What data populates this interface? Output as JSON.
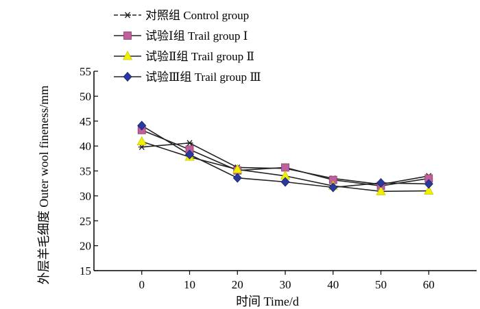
{
  "chart_data": {
    "type": "line",
    "title": "",
    "xlabel": "时间 Time/d",
    "ylabel": "外层羊毛细度 Outer wool fineness/mm",
    "x": [
      0,
      10,
      20,
      30,
      40,
      50,
      60
    ],
    "xlim": [
      -10,
      70
    ],
    "ylim": [
      15,
      55
    ],
    "yticks": [
      15,
      20,
      25,
      30,
      35,
      40,
      45,
      50,
      55
    ],
    "xticks": [
      0,
      10,
      20,
      30,
      40,
      50,
      60
    ],
    "grid": false,
    "legend_position": "top",
    "series": [
      {
        "name": "对照组 Control group",
        "marker": "asterisk",
        "color": "#222222",
        "values": [
          39.8,
          40.6,
          35.7,
          35.5,
          33.5,
          32.3,
          34.0
        ]
      },
      {
        "name": "试验Ⅰ组 Trail group Ⅰ",
        "marker": "square",
        "color": "#c0609a",
        "values": [
          43.2,
          39.3,
          35.1,
          35.7,
          33.2,
          32.0,
          33.5
        ]
      },
      {
        "name": "试验Ⅱ组 Trail group Ⅱ",
        "marker": "triangle",
        "color": "#f0f000",
        "values": [
          40.9,
          37.8,
          35.3,
          34.0,
          32.0,
          30.9,
          31.0
        ]
      },
      {
        "name": "试验Ⅲ组 Trail group Ⅲ",
        "marker": "diamond",
        "color": "#2a3a9a",
        "values": [
          44.1,
          38.3,
          33.6,
          32.8,
          31.7,
          32.6,
          32.4
        ]
      }
    ]
  }
}
